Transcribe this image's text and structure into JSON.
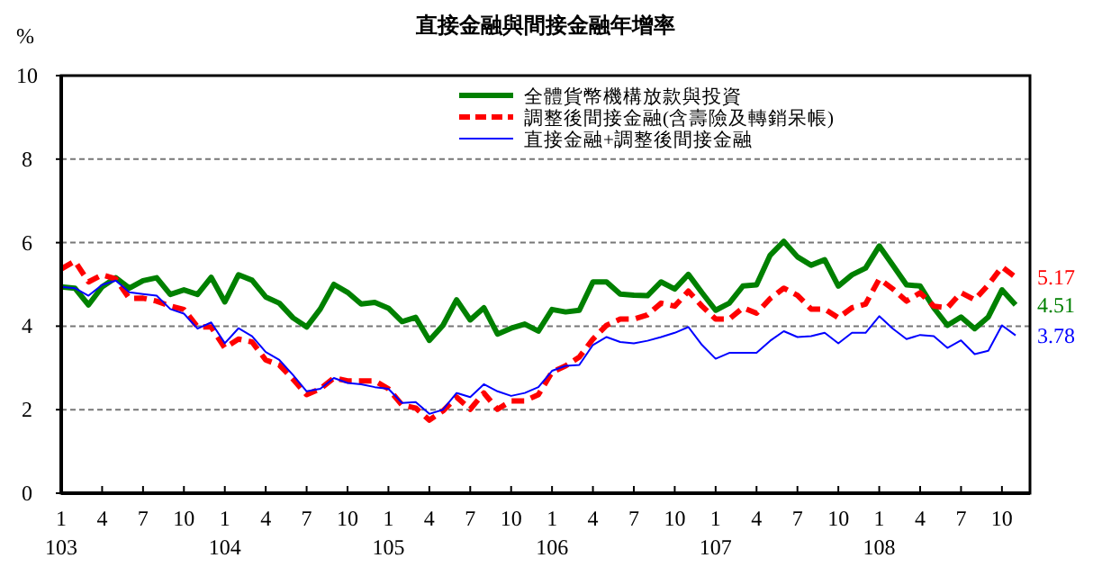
{
  "chart_data": {
    "type": "line",
    "title": "直接金融與間接金融年增率",
    "ylabel": "%",
    "categories": [
      "1\n103",
      null,
      null,
      "4",
      null,
      null,
      "7",
      null,
      null,
      "10",
      null,
      null,
      "1\n104",
      null,
      null,
      "4",
      null,
      null,
      "7",
      null,
      null,
      "10",
      null,
      null,
      "1\n105",
      null,
      null,
      "4",
      null,
      null,
      "7",
      null,
      null,
      "10",
      null,
      null,
      "1\n106",
      null,
      null,
      "4",
      null,
      null,
      "7",
      null,
      null,
      "10",
      null,
      null,
      "1\n107",
      null,
      null,
      "4",
      null,
      null,
      "7",
      null,
      null,
      "10",
      null,
      null,
      "1\n108",
      null,
      null,
      "4",
      null,
      null,
      "7",
      null,
      null,
      "10",
      null
    ],
    "ylim": [
      0,
      10
    ],
    "yticks": [
      0,
      2,
      4,
      6,
      8,
      10
    ],
    "grid": "y",
    "legend": "top right",
    "series": [
      {
        "name": "全體貨幣機構放款與投資",
        "color": "#008000",
        "line_style": "solid",
        "values": [
          4.94,
          4.91,
          4.51,
          4.94,
          5.16,
          4.91,
          5.09,
          5.16,
          4.76,
          4.87,
          4.76,
          5.17,
          4.58,
          5.23,
          5.1,
          4.7,
          4.55,
          4.2,
          3.98,
          4.41,
          5.0,
          4.81,
          4.53,
          4.57,
          4.43,
          4.11,
          4.21,
          3.66,
          4.02,
          4.63,
          4.15,
          4.44,
          3.81,
          3.95,
          4.05,
          3.88,
          4.4,
          4.34,
          4.38,
          5.06,
          5.06,
          4.77,
          4.74,
          4.73,
          5.06,
          4.89,
          5.24,
          4.8,
          4.38,
          4.55,
          4.96,
          4.99,
          5.7,
          6.03,
          5.66,
          5.46,
          5.59,
          4.96,
          5.23,
          5.39,
          5.92,
          5.46,
          4.99,
          4.96,
          4.44,
          4.02,
          4.22,
          3.94,
          4.22,
          4.87,
          4.51
        ],
        "value_labels": [
          null,
          null,
          null,
          null,
          null,
          null,
          null,
          null,
          null,
          null,
          null,
          null,
          null,
          null,
          null,
          null,
          null,
          null,
          null,
          null,
          null,
          null,
          null,
          null,
          null,
          null,
          null,
          null,
          null,
          null,
          null,
          null,
          null,
          null,
          null,
          null,
          null,
          null,
          null,
          null,
          null,
          null,
          null,
          null,
          null,
          null,
          null,
          null,
          null,
          null,
          null,
          null,
          null,
          null,
          null,
          null,
          null,
          null,
          null,
          null,
          null,
          null,
          null,
          null,
          null,
          null,
          null,
          null,
          null,
          null,
          "4.51"
        ]
      },
      {
        "name": "調整後間接金融(含壽險及轉銷呆帳)",
        "color": "#ff0000",
        "line_style": "dashed",
        "values": [
          5.37,
          5.56,
          5.06,
          5.23,
          5.13,
          4.66,
          4.67,
          4.6,
          4.48,
          4.4,
          3.98,
          3.98,
          3.48,
          3.69,
          3.62,
          3.19,
          3.07,
          2.73,
          2.36,
          2.5,
          2.76,
          2.69,
          2.69,
          2.69,
          2.5,
          2.11,
          2.04,
          1.75,
          1.97,
          2.3,
          2.01,
          2.4,
          2.01,
          2.21,
          2.21,
          2.36,
          2.9,
          3.05,
          3.26,
          3.69,
          4.02,
          4.17,
          4.17,
          4.27,
          4.55,
          4.48,
          4.84,
          4.48,
          4.17,
          4.17,
          4.44,
          4.31,
          4.66,
          4.91,
          4.74,
          4.41,
          4.41,
          4.2,
          4.44,
          4.53,
          5.13,
          4.89,
          4.6,
          4.8,
          4.48,
          4.44,
          4.8,
          4.63,
          4.99,
          5.42,
          5.17
        ],
        "value_labels": [
          null,
          null,
          null,
          null,
          null,
          null,
          null,
          null,
          null,
          null,
          null,
          null,
          null,
          null,
          null,
          null,
          null,
          null,
          null,
          null,
          null,
          null,
          null,
          null,
          null,
          null,
          null,
          null,
          null,
          null,
          null,
          null,
          null,
          null,
          null,
          null,
          null,
          null,
          null,
          null,
          null,
          null,
          null,
          null,
          null,
          null,
          null,
          null,
          null,
          null,
          null,
          null,
          null,
          null,
          null,
          null,
          null,
          null,
          null,
          null,
          null,
          null,
          null,
          null,
          null,
          null,
          null,
          null,
          null,
          null,
          "5.17"
        ]
      },
      {
        "name": "直接金融+調整後間接金融",
        "color": "#0000ff",
        "line_style": "solid",
        "values": [
          4.94,
          4.91,
          4.73,
          4.99,
          5.09,
          4.81,
          4.77,
          4.73,
          4.41,
          4.3,
          3.94,
          4.09,
          3.59,
          3.95,
          3.76,
          3.38,
          3.19,
          2.83,
          2.44,
          2.5,
          2.76,
          2.64,
          2.61,
          2.54,
          2.5,
          2.16,
          2.18,
          1.9,
          2.0,
          2.4,
          2.3,
          2.61,
          2.44,
          2.33,
          2.4,
          2.54,
          2.93,
          3.05,
          3.07,
          3.55,
          3.74,
          3.62,
          3.59,
          3.65,
          3.74,
          3.84,
          3.98,
          3.55,
          3.22,
          3.36,
          3.36,
          3.36,
          3.65,
          3.88,
          3.74,
          3.76,
          3.84,
          3.59,
          3.84,
          3.84,
          4.24,
          3.94,
          3.69,
          3.79,
          3.76,
          3.48,
          3.66,
          3.33,
          3.41,
          4.02,
          3.78
        ],
        "value_labels": [
          null,
          null,
          null,
          null,
          null,
          null,
          null,
          null,
          null,
          null,
          null,
          null,
          null,
          null,
          null,
          null,
          null,
          null,
          null,
          null,
          null,
          null,
          null,
          null,
          null,
          null,
          null,
          null,
          null,
          null,
          null,
          null,
          null,
          null,
          null,
          null,
          null,
          null,
          null,
          null,
          null,
          null,
          null,
          null,
          null,
          null,
          null,
          null,
          null,
          null,
          null,
          null,
          null,
          null,
          null,
          null,
          null,
          null,
          null,
          null,
          null,
          null,
          null,
          null,
          null,
          null,
          null,
          null,
          null,
          null,
          "3.78"
        ]
      }
    ]
  }
}
